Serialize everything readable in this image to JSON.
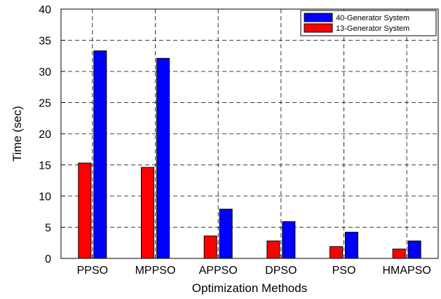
{
  "chart_data": {
    "type": "bar",
    "title": "",
    "xlabel": "Optimization Methods",
    "ylabel": "Time (sec)",
    "categories": [
      "PPSO",
      "MPPSO",
      "APPSO",
      "DPSO",
      "PSO",
      "HMAPSO"
    ],
    "ylim": [
      0,
      40
    ],
    "yticks": [
      0,
      5,
      10,
      15,
      20,
      25,
      30,
      35,
      40
    ],
    "grid": true,
    "grid_style": "dashed",
    "legend_position": "top-right",
    "series": [
      {
        "name": "13-Generator System",
        "color": "#ff0000",
        "values": [
          15.3,
          14.6,
          3.6,
          2.8,
          1.9,
          1.5
        ]
      },
      {
        "name": "40-Generator System",
        "color": "#0000ff",
        "values": [
          33.3,
          32.1,
          7.9,
          5.9,
          4.2,
          2.8
        ]
      }
    ],
    "legend_order": [
      1,
      0
    ]
  }
}
